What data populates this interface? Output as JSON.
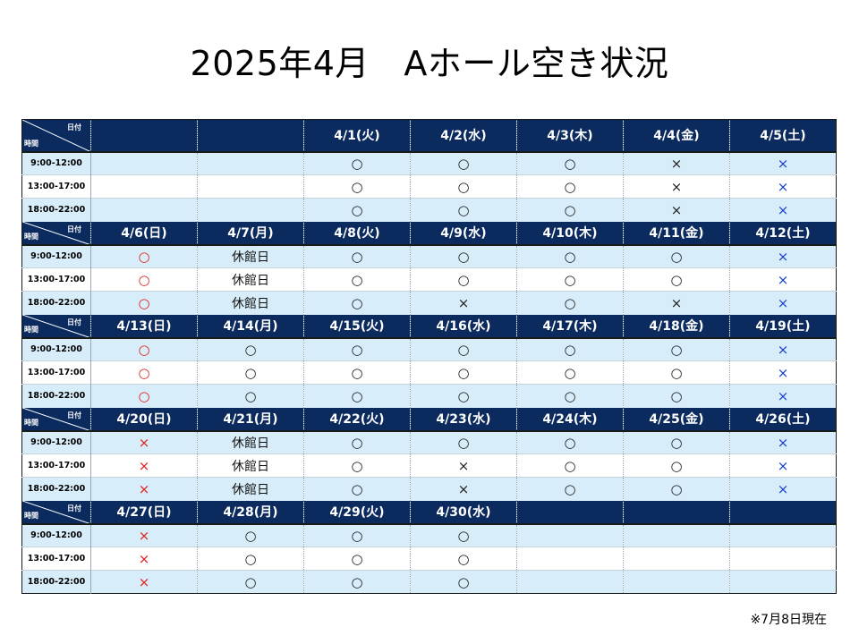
{
  "title": "2025年4月　Aホール空き状況",
  "footnote": "※7月8日現在",
  "corner": {
    "top_label": "日付",
    "bottom_label": "時間"
  },
  "time_slots": [
    "9:00-12:00",
    "13:00-17:00",
    "18:00-22:00"
  ],
  "marks": {
    "o": "○",
    "x": "×",
    "closed": "休館日"
  },
  "colors": {
    "header_bg": "#0b2a5e",
    "row_alt": "#d7edf9",
    "sunday_mark": "#e02020",
    "saturday_mark": "#1a3fd0"
  },
  "weeks": [
    {
      "dates": [
        "",
        "",
        "4/1(火)",
        "4/2(水)",
        "4/3(木)",
        "4/4(金)",
        "4/5(土)"
      ],
      "slots": [
        [
          "",
          "",
          "o",
          "o",
          "o",
          "x",
          "x"
        ],
        [
          "",
          "",
          "o",
          "o",
          "o",
          "x",
          "x"
        ],
        [
          "",
          "",
          "o",
          "o",
          "o",
          "x",
          "x"
        ]
      ]
    },
    {
      "dates": [
        "4/6(日)",
        "4/7(月)",
        "4/8(火)",
        "4/9(水)",
        "4/10(木)",
        "4/11(金)",
        "4/12(土)"
      ],
      "slots": [
        [
          "o",
          "closed",
          "o",
          "o",
          "o",
          "o",
          "x"
        ],
        [
          "o",
          "closed",
          "o",
          "o",
          "o",
          "o",
          "x"
        ],
        [
          "o",
          "closed",
          "o",
          "x",
          "o",
          "x",
          "x"
        ]
      ]
    },
    {
      "dates": [
        "4/13(日)",
        "4/14(月)",
        "4/15(火)",
        "4/16(水)",
        "4/17(木)",
        "4/18(金)",
        "4/19(土)"
      ],
      "slots": [
        [
          "o",
          "o",
          "o",
          "o",
          "o",
          "o",
          "x"
        ],
        [
          "o",
          "o",
          "o",
          "o",
          "o",
          "o",
          "x"
        ],
        [
          "o",
          "o",
          "o",
          "o",
          "o",
          "o",
          "x"
        ]
      ]
    },
    {
      "dates": [
        "4/20(日)",
        "4/21(月)",
        "4/22(火)",
        "4/23(水)",
        "4/24(木)",
        "4/25(金)",
        "4/26(土)"
      ],
      "slots": [
        [
          "x",
          "closed",
          "o",
          "o",
          "o",
          "o",
          "x"
        ],
        [
          "x",
          "closed",
          "o",
          "x",
          "o",
          "o",
          "x"
        ],
        [
          "x",
          "closed",
          "o",
          "x",
          "o",
          "o",
          "x"
        ]
      ]
    },
    {
      "dates": [
        "4/27(日)",
        "4/28(月)",
        "4/29(火)",
        "4/30(水)",
        "",
        "",
        ""
      ],
      "slots": [
        [
          "x",
          "o",
          "o",
          "o",
          "",
          "",
          ""
        ],
        [
          "x",
          "o",
          "o",
          "o",
          "",
          "",
          ""
        ],
        [
          "x",
          "o",
          "o",
          "o",
          "",
          "",
          ""
        ]
      ]
    }
  ]
}
